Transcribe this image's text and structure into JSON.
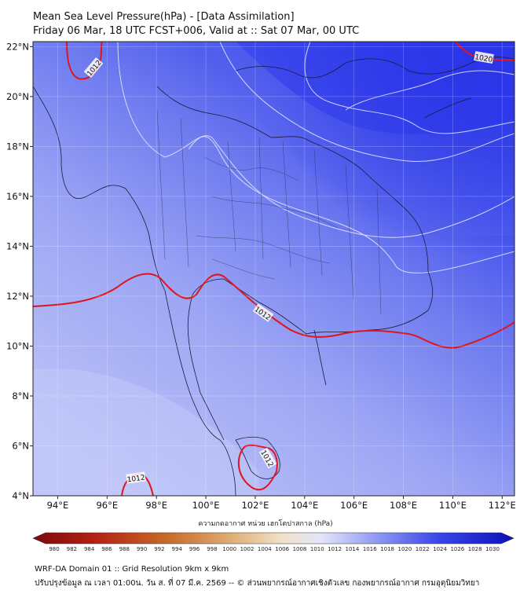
{
  "header": {
    "title_line1": "Mean Sea Level Pressure(hPa) - [Data Assimilation]",
    "title_line2": "Friday 06 Mar, 18 UTC FCST+006, Valid at :: Sat 07 Mar, 00 UTC"
  },
  "map": {
    "lat_labels": [
      "22°N",
      "20°N",
      "18°N",
      "16°N",
      "14°N",
      "12°N",
      "10°N",
      "8°N",
      "6°N",
      "4°N"
    ],
    "lon_labels": [
      "94°E",
      "96°E",
      "98°E",
      "100°E",
      "102°E",
      "104°E",
      "106°E",
      "108°E",
      "110°E",
      "112°E"
    ],
    "lat_range": [
      4,
      22.2
    ],
    "lon_range": [
      93,
      112.5
    ],
    "isobar_labels": [
      "1012",
      "1012",
      "1020",
      "1012",
      "1012"
    ],
    "colors": {
      "isobar_1012": "#e0141c",
      "ocean_low": "#b9bff5",
      "ocean_high": "#2b33e8"
    }
  },
  "colorbar": {
    "label": "ความกดอากาศ หน่วย เฮกโตปาสกาล (hPa)",
    "ticks": [
      "980",
      "982",
      "984",
      "986",
      "988",
      "990",
      "992",
      "994",
      "996",
      "998",
      "1000",
      "1002",
      "1004",
      "1006",
      "1008",
      "1010",
      "1012",
      "1014",
      "1016",
      "1018",
      "1020",
      "1022",
      "1024",
      "1026",
      "1028",
      "1030"
    ]
  },
  "footer": {
    "line1": "WRF-DA Domain 01 :: Grid Resolution 9km x 9km",
    "line2": "ปรับปรุงข้อมูล ณ เวลา 01:00น. วัน ส. ที่ 07 มี.ค. 2569 -- © ส่วนพยากรณ์อากาศเชิงตัวเลข กองพยากรณ์อากาศ กรมอุตุนิยมวิทยา"
  }
}
